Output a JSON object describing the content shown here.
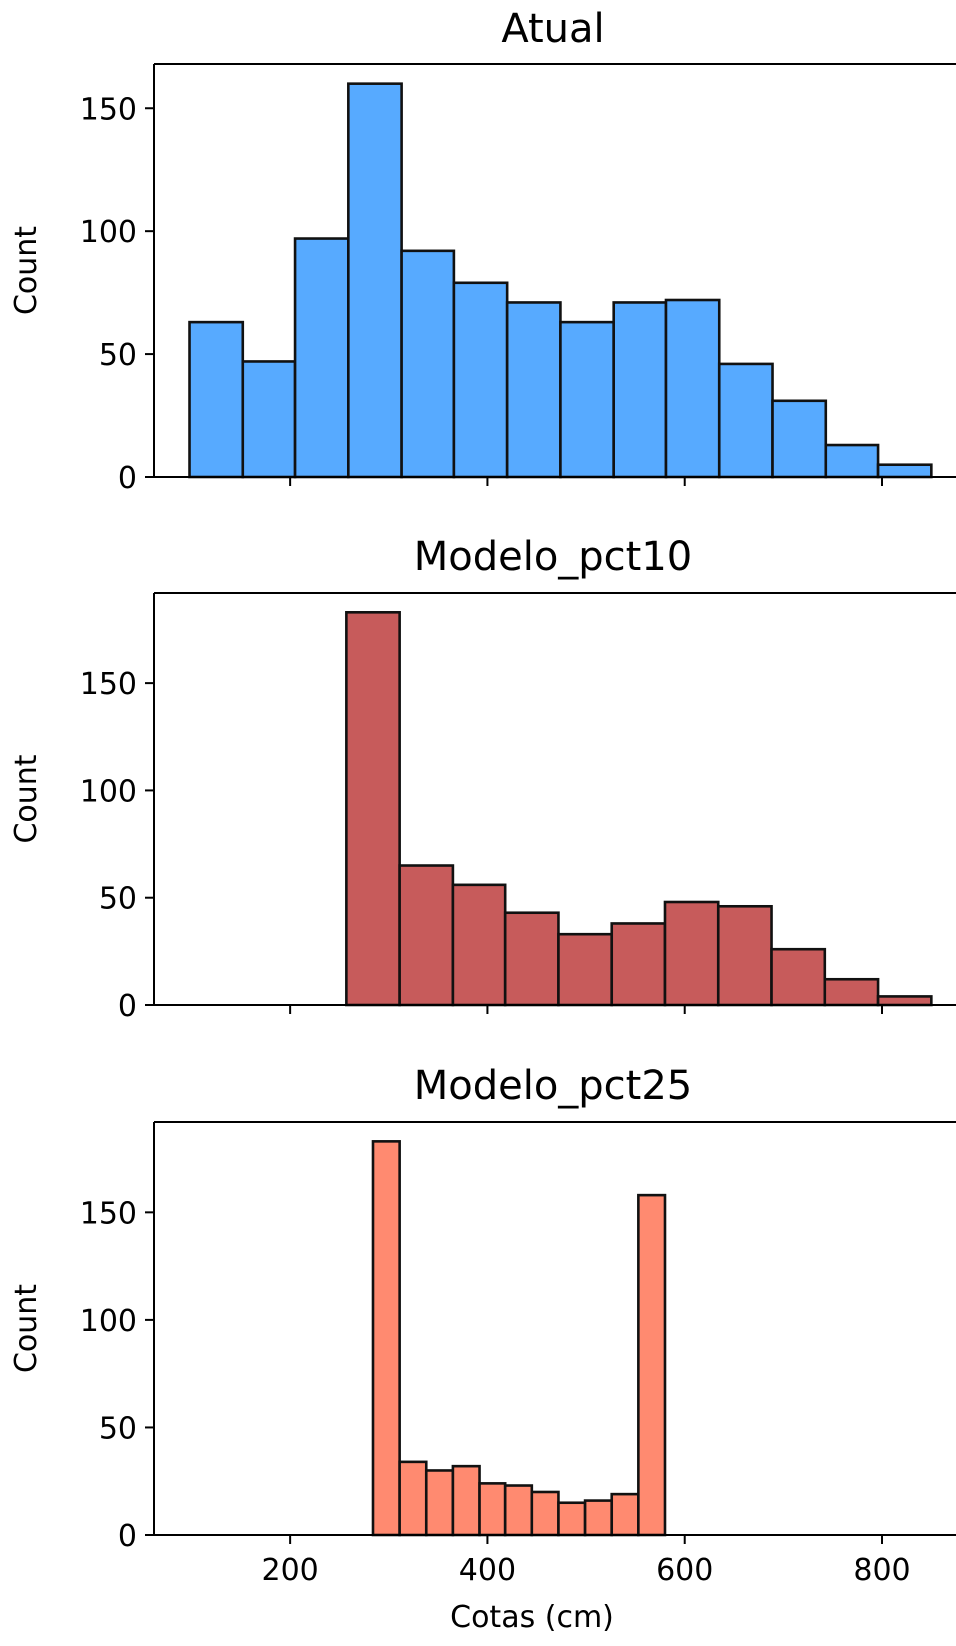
{
  "chart_data": [
    {
      "type": "bar",
      "title": "Atual",
      "xlabel": "",
      "ylabel": "Count",
      "color": "#57aaff",
      "bins": [
        {
          "x0": 98,
          "x1": 152,
          "count": 63
        },
        {
          "x0": 152,
          "x1": 205,
          "count": 47
        },
        {
          "x0": 205,
          "x1": 259,
          "count": 97
        },
        {
          "x0": 259,
          "x1": 313,
          "count": 160
        },
        {
          "x0": 313,
          "x1": 366,
          "count": 92
        },
        {
          "x0": 366,
          "x1": 420,
          "count": 79
        },
        {
          "x0": 420,
          "x1": 474,
          "count": 71
        },
        {
          "x0": 474,
          "x1": 528,
          "count": 63
        },
        {
          "x0": 528,
          "x1": 581,
          "count": 71
        },
        {
          "x0": 581,
          "x1": 635,
          "count": 72
        },
        {
          "x0": 635,
          "x1": 689,
          "count": 46
        },
        {
          "x0": 689,
          "x1": 743,
          "count": 31
        },
        {
          "x0": 743,
          "x1": 796,
          "count": 13
        },
        {
          "x0": 796,
          "x1": 850,
          "count": 5
        }
      ],
      "xlim": [
        62,
        875
      ],
      "ylim": [
        0,
        168
      ],
      "xticks": [
        200,
        400,
        600,
        800
      ],
      "yticks": [
        0,
        50,
        100,
        150
      ],
      "ytick_labels": [
        "0",
        "50",
        "100",
        "150"
      ],
      "show_xtick_labels": false
    },
    {
      "type": "bar",
      "title": "Modelo_pct10",
      "xlabel": "",
      "ylabel": "Count",
      "color": "#c75b5b",
      "bins": [
        {
          "x0": 257,
          "x1": 311,
          "count": 183
        },
        {
          "x0": 311,
          "x1": 365,
          "count": 65
        },
        {
          "x0": 365,
          "x1": 418,
          "count": 56
        },
        {
          "x0": 418,
          "x1": 472,
          "count": 43
        },
        {
          "x0": 472,
          "x1": 526,
          "count": 33
        },
        {
          "x0": 526,
          "x1": 580,
          "count": 38
        },
        {
          "x0": 580,
          "x1": 634,
          "count": 48
        },
        {
          "x0": 634,
          "x1": 688,
          "count": 46
        },
        {
          "x0": 688,
          "x1": 742,
          "count": 26
        },
        {
          "x0": 742,
          "x1": 796,
          "count": 12
        },
        {
          "x0": 796,
          "x1": 850,
          "count": 4
        }
      ],
      "xlim": [
        62,
        875
      ],
      "ylim": [
        0,
        192
      ],
      "xticks": [
        200,
        400,
        600,
        800
      ],
      "yticks": [
        0,
        50,
        100,
        150
      ],
      "ytick_labels": [
        "0",
        "50",
        "100",
        "150"
      ],
      "show_xtick_labels": false
    },
    {
      "type": "bar",
      "title": "Modelo_pct25",
      "xlabel": "Cotas (cm)",
      "ylabel": "Count",
      "color": "#ff8a70",
      "bins": [
        {
          "x0": 284,
          "x1": 311,
          "count": 183
        },
        {
          "x0": 311,
          "x1": 338,
          "count": 34
        },
        {
          "x0": 338,
          "x1": 365,
          "count": 30
        },
        {
          "x0": 365,
          "x1": 392,
          "count": 32
        },
        {
          "x0": 392,
          "x1": 418,
          "count": 24
        },
        {
          "x0": 418,
          "x1": 445,
          "count": 23
        },
        {
          "x0": 445,
          "x1": 472,
          "count": 20
        },
        {
          "x0": 472,
          "x1": 499,
          "count": 15
        },
        {
          "x0": 499,
          "x1": 526,
          "count": 16
        },
        {
          "x0": 526,
          "x1": 553,
          "count": 19
        },
        {
          "x0": 553,
          "x1": 580,
          "count": 158
        }
      ],
      "xlim": [
        62,
        875
      ],
      "ylim": [
        0,
        192
      ],
      "xticks": [
        200,
        400,
        600,
        800
      ],
      "xtick_labels": [
        "200",
        "400",
        "600",
        "800"
      ],
      "yticks": [
        0,
        50,
        100,
        150
      ],
      "ytick_labels": [
        "0",
        "50",
        "100",
        "150"
      ],
      "show_xtick_labels": true
    }
  ]
}
